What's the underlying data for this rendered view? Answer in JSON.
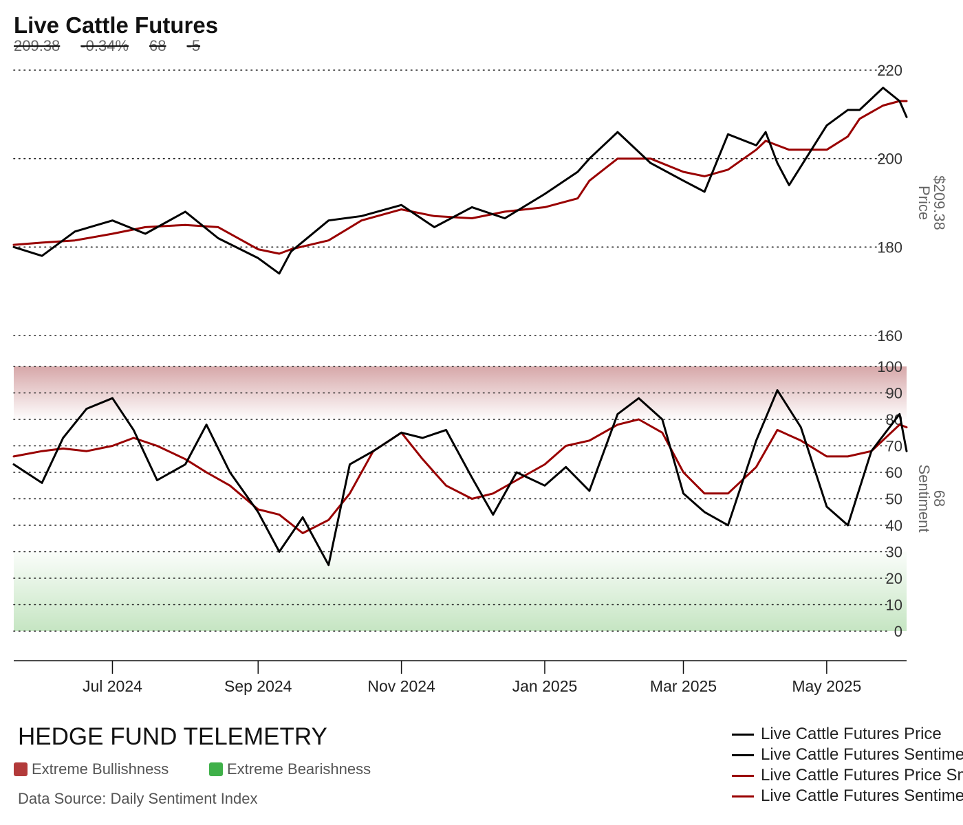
{
  "header": {
    "title": "Live Cattle Futures",
    "stats": [
      "209.38",
      "-0.34%",
      "68",
      "-5"
    ]
  },
  "colors": {
    "price": "#000000",
    "smoothed": "#990000",
    "bull_zone": "#c98a8c",
    "bear_zone": "#9fd49a",
    "bull_swatch": "#b23a3a",
    "bear_swatch": "#3fb049"
  },
  "brand": "HEDGE FUND TELEMETRY",
  "zones": {
    "bullish_label": "Extreme Bullishness",
    "bearish_label": "Extreme Bearishness"
  },
  "source": "Data Source: Daily Sentiment Index",
  "legend": [
    {
      "label": "Live Cattle Futures Price",
      "color": "#000000"
    },
    {
      "label": "Live Cattle Futures Sentiment",
      "color": "#000000"
    },
    {
      "label": "Live Cattle Futures Price Smoothed",
      "color": "#990000"
    },
    {
      "label": "Live Cattle Futures Sentiment Smoothed",
      "color": "#990000"
    }
  ],
  "chart_data": [
    {
      "type": "line",
      "panel": "price",
      "ylabel": "Price",
      "last_value_label": "$209.38",
      "ylim": [
        160,
        220
      ],
      "y_ticks": [
        "220",
        "200",
        "180",
        "160"
      ],
      "x_ticks": [
        "Jul 2024",
        "Sep 2024",
        "Nov 2024",
        "Jan 2025",
        "Mar 2025",
        "May 2025"
      ],
      "grid": true,
      "x": [
        "2024-05-20",
        "2024-06-01",
        "2024-06-15",
        "2024-07-01",
        "2024-07-15",
        "2024-08-01",
        "2024-08-15",
        "2024-09-01",
        "2024-09-10",
        "2024-09-15",
        "2024-10-01",
        "2024-10-15",
        "2024-11-01",
        "2024-11-15",
        "2024-12-01",
        "2024-12-15",
        "2025-01-01",
        "2025-01-15",
        "2025-01-20",
        "2025-02-01",
        "2025-02-15",
        "2025-03-01",
        "2025-03-10",
        "2025-03-20",
        "2025-04-01",
        "2025-04-05",
        "2025-04-10",
        "2025-04-15",
        "2025-05-01",
        "2025-05-10",
        "2025-05-15",
        "2025-05-25",
        "2025-06-01",
        "2025-06-04"
      ],
      "series": [
        {
          "name": "Live Cattle Futures Price",
          "values": [
            180,
            178,
            183.5,
            186,
            183,
            188,
            182,
            177.5,
            174,
            179,
            186,
            187,
            189.5,
            184.5,
            189,
            186.5,
            192,
            197,
            200,
            206,
            199,
            195,
            192.5,
            205.5,
            203,
            206,
            199,
            194,
            207.5,
            211,
            211,
            216,
            213,
            209.4
          ]
        },
        {
          "name": "Live Cattle Futures Price Smoothed",
          "values": [
            180.5,
            181,
            181.5,
            183,
            184.5,
            185,
            184.5,
            179.5,
            178.5,
            179.5,
            181.5,
            186,
            188.5,
            187,
            186.5,
            188,
            189,
            191,
            195,
            200,
            200,
            197,
            196,
            197.5,
            202,
            204,
            203,
            202,
            202,
            205,
            209,
            212,
            213,
            213
          ]
        }
      ]
    },
    {
      "type": "line",
      "panel": "sentiment",
      "ylabel": "Sentiment",
      "last_value_label": "68",
      "ylim": [
        0,
        100
      ],
      "y_ticks": [
        "100",
        "90",
        "80",
        "70",
        "60",
        "50",
        "40",
        "30",
        "20",
        "10",
        "0"
      ],
      "extreme_zones": {
        "bullish": [
          80,
          100
        ],
        "bearish": [
          0,
          30
        ]
      },
      "grid": true,
      "x": [
        "2024-05-20",
        "2024-06-01",
        "2024-06-10",
        "2024-06-20",
        "2024-07-01",
        "2024-07-10",
        "2024-07-20",
        "2024-08-01",
        "2024-08-10",
        "2024-08-20",
        "2024-09-01",
        "2024-09-10",
        "2024-09-20",
        "2024-10-01",
        "2024-10-10",
        "2024-10-20",
        "2024-11-01",
        "2024-11-10",
        "2024-11-20",
        "2024-12-01",
        "2024-12-10",
        "2024-12-20",
        "2025-01-01",
        "2025-01-10",
        "2025-01-20",
        "2025-02-01",
        "2025-02-10",
        "2025-02-20",
        "2025-03-01",
        "2025-03-10",
        "2025-03-20",
        "2025-04-01",
        "2025-04-10",
        "2025-04-20",
        "2025-05-01",
        "2025-05-10",
        "2025-05-20",
        "2025-06-01",
        "2025-06-04"
      ],
      "series": [
        {
          "name": "Live Cattle Futures Sentiment",
          "values": [
            63,
            56,
            73,
            84,
            88,
            76,
            57,
            63,
            78,
            60,
            45,
            30,
            43,
            25,
            63,
            68,
            75,
            73,
            76,
            58,
            44,
            60,
            55,
            62,
            53,
            82,
            88,
            80,
            52,
            45,
            40,
            72,
            91,
            77,
            47,
            40,
            68,
            82,
            68
          ]
        },
        {
          "name": "Live Cattle Futures Sentiment Smoothed",
          "values": [
            66,
            68,
            69,
            68,
            70,
            73,
            70,
            65,
            60,
            55,
            46,
            44,
            37,
            42,
            52,
            68,
            75,
            65,
            55,
            50,
            52,
            57,
            63,
            70,
            72,
            78,
            80,
            75,
            60,
            52,
            52,
            62,
            76,
            72,
            66,
            66,
            68,
            78,
            77
          ]
        }
      ]
    }
  ]
}
